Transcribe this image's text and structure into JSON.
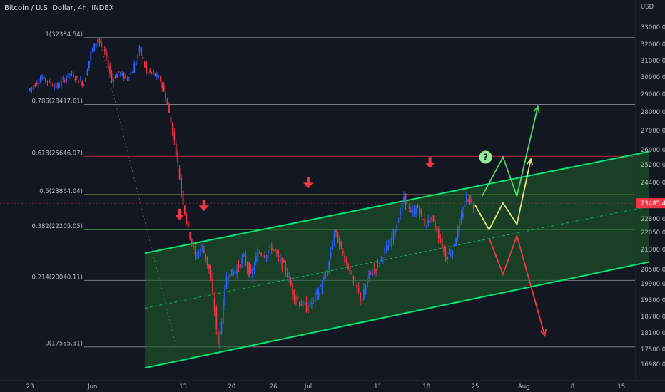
{
  "title": "Bitcoin / U.S. Dollar, 4h, INDEX",
  "currency": "USD",
  "chart_data": {
    "type": "candlestick",
    "symbol": "Bitcoin / U.S. Dollar",
    "interval": "4h",
    "exchange": "INDEX",
    "y_axis_unit": "USD",
    "ylim": [
      16500,
      34000
    ],
    "y_ticks": [
      "33000.00",
      "32000.00",
      "31000.00",
      "30000.00",
      "29000.00",
      "28000.00",
      "27000.00",
      "26000.00",
      "25200.00",
      "24400.00",
      "22800.00",
      "22050.00",
      "21300.00",
      "20500.00",
      "19900.00",
      "19300.00",
      "18700.00",
      "18100.00",
      "17500.00",
      "16980.00"
    ],
    "x_ticks": [
      {
        "label": "23",
        "day": 0
      },
      {
        "label": "Jun",
        "day": 9
      },
      {
        "label": "13",
        "day": 22
      },
      {
        "label": "20",
        "day": 29
      },
      {
        "label": "26",
        "day": 35
      },
      {
        "label": "Jul",
        "day": 40
      },
      {
        "label": "11",
        "day": 50
      },
      {
        "label": "18",
        "day": 57
      },
      {
        "label": "25",
        "day": 64
      },
      {
        "label": "Aug",
        "day": 71
      },
      {
        "label": "8",
        "day": 78
      },
      {
        "label": "15",
        "day": 85
      }
    ],
    "current_price": {
      "label": "23485.46",
      "value": 23485.46,
      "color": "#f23645"
    },
    "fib_levels": [
      {
        "label": "1(32384.54)",
        "value": 32384.54,
        "color": "#787b86"
      },
      {
        "label": "0.786(28417.61)",
        "value": 28417.61,
        "color": "#787b86"
      },
      {
        "label": "0.618(25646.97)",
        "value": 25646.97,
        "color": "#b22833"
      },
      {
        "label": "0.5(23864.04)",
        "value": 23864.04,
        "color": "#c9c35a"
      },
      {
        "label": "0.382(22205.05)",
        "value": 22205.05,
        "color": "#4caf50"
      },
      {
        "label": "0.214(20040.11)",
        "value": 20040.11,
        "color": "#787b86"
      },
      {
        "label": "0(17585.31)",
        "value": 17585.31,
        "color": "#787b86"
      }
    ],
    "channel": {
      "upper": [
        {
          "day": 16.5,
          "value": 21150
        },
        {
          "day": 89,
          "value": 25900
        }
      ],
      "lower": [
        {
          "day": 16.5,
          "value": 16850
        },
        {
          "day": 89,
          "value": 20800
        }
      ],
      "color": "#00e676"
    },
    "price_path": [
      {
        "day": 0,
        "value": 29200
      },
      {
        "day": 2,
        "value": 30000
      },
      {
        "day": 4,
        "value": 29400
      },
      {
        "day": 6,
        "value": 30200
      },
      {
        "day": 8,
        "value": 29600
      },
      {
        "day": 9,
        "value": 31500
      },
      {
        "day": 10,
        "value": 32300
      },
      {
        "day": 11,
        "value": 31500
      },
      {
        "day": 12,
        "value": 29800
      },
      {
        "day": 13,
        "value": 30300
      },
      {
        "day": 14,
        "value": 29900
      },
      {
        "day": 15,
        "value": 30400
      },
      {
        "day": 16,
        "value": 31700
      },
      {
        "day": 17,
        "value": 30300
      },
      {
        "day": 18,
        "value": 30200
      },
      {
        "day": 19,
        "value": 29800
      },
      {
        "day": 20,
        "value": 28400
      },
      {
        "day": 21,
        "value": 26400
      },
      {
        "day": 22,
        "value": 24000
      },
      {
        "day": 23,
        "value": 22200
      },
      {
        "day": 24,
        "value": 21000
      },
      {
        "day": 25,
        "value": 21400
      },
      {
        "day": 26,
        "value": 20500
      },
      {
        "day": 26.8,
        "value": 18900
      },
      {
        "day": 27.3,
        "value": 17600
      },
      {
        "day": 28.5,
        "value": 20200
      },
      {
        "day": 30,
        "value": 20500
      },
      {
        "day": 31,
        "value": 21000
      },
      {
        "day": 32,
        "value": 20200
      },
      {
        "day": 33,
        "value": 21200
      },
      {
        "day": 34,
        "value": 21100
      },
      {
        "day": 35,
        "value": 21400
      },
      {
        "day": 36,
        "value": 20900
      },
      {
        "day": 37,
        "value": 20500
      },
      {
        "day": 38,
        "value": 19600
      },
      {
        "day": 39,
        "value": 19200
      },
      {
        "day": 40,
        "value": 19000
      },
      {
        "day": 41,
        "value": 19300
      },
      {
        "day": 42,
        "value": 19800
      },
      {
        "day": 43,
        "value": 20400
      },
      {
        "day": 44,
        "value": 22100
      },
      {
        "day": 45,
        "value": 21300
      },
      {
        "day": 46,
        "value": 20600
      },
      {
        "day": 47,
        "value": 19800
      },
      {
        "day": 48,
        "value": 19300
      },
      {
        "day": 49,
        "value": 20300
      },
      {
        "day": 50,
        "value": 20600
      },
      {
        "day": 51,
        "value": 21100
      },
      {
        "day": 52,
        "value": 21600
      },
      {
        "day": 53,
        "value": 22500
      },
      {
        "day": 54,
        "value": 23800
      },
      {
        "day": 55,
        "value": 23000
      },
      {
        "day": 56,
        "value": 23300
      },
      {
        "day": 57,
        "value": 22500
      },
      {
        "day": 58,
        "value": 22800
      },
      {
        "day": 59,
        "value": 21900
      },
      {
        "day": 60,
        "value": 21000
      },
      {
        "day": 61,
        "value": 21300
      },
      {
        "day": 62,
        "value": 22500
      },
      {
        "day": 63,
        "value": 23800
      },
      {
        "day": 64,
        "value": 23400
      }
    ],
    "annotations": [
      {
        "type": "arrow-down",
        "day": 21.5,
        "value": 22800,
        "color": "#f23645"
      },
      {
        "type": "arrow-down",
        "day": 25,
        "value": 23200,
        "color": "#f23645"
      },
      {
        "type": "arrow-down",
        "day": 40,
        "value": 24200,
        "color": "#f23645"
      },
      {
        "type": "arrow-down",
        "day": 57.5,
        "value": 25100,
        "color": "#f23645"
      },
      {
        "type": "question",
        "day": 65.5,
        "value": 25600,
        "label": "?",
        "color": "#90ee90"
      }
    ],
    "scenarios": [
      {
        "name": "bullish",
        "color": "#4cd964",
        "points": [
          {
            "day": 65,
            "value": 23800
          },
          {
            "day": 68,
            "value": 25600
          },
          {
            "day": 70,
            "value": 23800
          },
          {
            "day": 73,
            "value": 28300
          }
        ]
      },
      {
        "name": "neutral",
        "color": "#e8e37a",
        "points": [
          {
            "day": 64,
            "value": 23400
          },
          {
            "day": 66,
            "value": 22200
          },
          {
            "day": 68,
            "value": 23500
          },
          {
            "day": 70,
            "value": 22500
          },
          {
            "day": 72,
            "value": 25500
          }
        ]
      },
      {
        "name": "bearish",
        "color": "#f23645",
        "points": [
          {
            "day": 66,
            "value": 21800
          },
          {
            "day": 68,
            "value": 20300
          },
          {
            "day": 70,
            "value": 21900
          },
          {
            "day": 74,
            "value": 18000
          }
        ]
      }
    ],
    "grid": false
  }
}
